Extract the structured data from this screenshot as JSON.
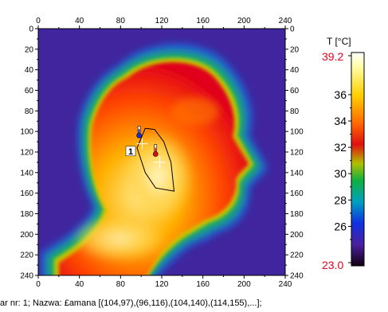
{
  "thermogram": {
    "x_ticks": [
      "0",
      "40",
      "80",
      "120",
      "160",
      "200",
      "240"
    ],
    "y_ticks": [
      "0",
      "20",
      "40",
      "60",
      "80",
      "100",
      "120",
      "140",
      "160",
      "180",
      "200",
      "220",
      "240"
    ],
    "x_range": [
      0,
      240
    ],
    "y_range": [
      0,
      240
    ],
    "region_label": "1",
    "region_polygon": [
      [
        104,
        97
      ],
      [
        96,
        116
      ],
      [
        104,
        140
      ],
      [
        114,
        155
      ],
      [
        132,
        158
      ],
      [
        129,
        130
      ],
      [
        122,
        110
      ],
      [
        113,
        98
      ]
    ],
    "marker_blue": [
      98,
      104
    ],
    "marker_red": [
      114,
      122
    ]
  },
  "colorbar": {
    "unit_label": "T [°C]",
    "max_label": "39.2",
    "min_label": "23.0",
    "tick_labels": [
      "36",
      "34",
      "32",
      "30",
      "28",
      "26"
    ],
    "tick_values": [
      36,
      34,
      32,
      30,
      28,
      26
    ],
    "range": [
      23.0,
      39.2
    ],
    "max_color": "#e8001c",
    "min_color": "#e8001c"
  },
  "footer_text": "ar nr: 1; Nazwa: £amana [(104,97),(96,116),(104,140),(114,155),...];"
}
